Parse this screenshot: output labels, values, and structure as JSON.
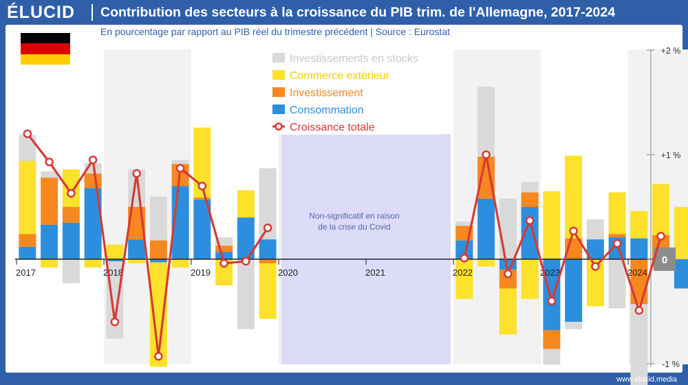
{
  "header": {
    "logo": "ÉLUCID",
    "title": "Contribution des secteurs à la croissance du PIB trim. de l'Allemagne, 2017-2024",
    "subtitle": "En pourcentage par rapport au PIB réel du trimestre précédent  |  Source : Eurostat"
  },
  "footer": {
    "url": "www.elucid.media"
  },
  "colors": {
    "stocks": "#d9d9d9",
    "exterieur": "#fde12a",
    "investissement": "#f7871f",
    "consommation": "#2e8ede",
    "croissance": "#d63a35",
    "covid": "#dcdcf8",
    "alt_band": "#f2f2f2",
    "flag_black": "#000000",
    "flag_red": "#dd0000",
    "flag_gold": "#ffce00"
  },
  "flag_icon": "germany-flag",
  "chart_data": {
    "type": "bar",
    "stacked": true,
    "ylim": [
      -1,
      2
    ],
    "yticks": [
      {
        "value": 2,
        "label": "+2 %"
      },
      {
        "value": 1,
        "label": "+1 %"
      },
      {
        "value": 0,
        "label": "0"
      },
      {
        "value": -1,
        "label": "-1 %"
      }
    ],
    "year_labels": [
      "2017",
      "2018",
      "2019",
      "2020",
      "2021",
      "2022",
      "2023",
      "2024"
    ],
    "legend_position": "top-center",
    "covid_note": [
      "Non-significatif en raison",
      "de la crise du Covid"
    ],
    "covid_range": [
      "2020Q1",
      "2021Q4"
    ],
    "categories": [
      "2017Q1",
      "2017Q2",
      "2017Q3",
      "2017Q4",
      "2018Q1",
      "2018Q2",
      "2018Q3",
      "2018Q4",
      "2019Q1",
      "2019Q2",
      "2019Q3",
      "2019Q4",
      "2020Q1",
      "2020Q2",
      "2020Q3",
      "2020Q4",
      "2021Q1",
      "2021Q2",
      "2021Q3",
      "2021Q4",
      "2022Q1",
      "2022Q2",
      "2022Q3",
      "2022Q4",
      "2023Q1",
      "2023Q2",
      "2023Q3",
      "2023Q4",
      "2024Q1",
      "2024Q2",
      "2024Q3"
    ],
    "series": [
      {
        "name": "Consommation",
        "key": "consommation",
        "values": [
          0.12,
          0.33,
          0.35,
          0.68,
          -0.02,
          0.19,
          -0.03,
          0.7,
          0.57,
          0.07,
          0.4,
          0.19,
          null,
          null,
          null,
          null,
          null,
          null,
          null,
          null,
          0.18,
          0.58,
          -0.1,
          0.5,
          -0.68,
          -0.6,
          0.19,
          0.21,
          0.2,
          -0.05,
          -0.28
        ]
      },
      {
        "name": "Investissement",
        "key": "investissement",
        "values": [
          0.12,
          0.45,
          0.15,
          0.14,
          0.0,
          0.31,
          0.18,
          0.21,
          0.02,
          0.06,
          0.0,
          -0.04,
          null,
          null,
          null,
          null,
          null,
          null,
          null,
          null,
          0.14,
          0.4,
          -0.18,
          0.14,
          -0.18,
          0.2,
          0.0,
          0.03,
          -0.43,
          0.23,
          0.0
        ]
      },
      {
        "name": "Commerce extérieur",
        "key": "exterieur",
        "values": [
          0.7,
          -0.08,
          0.36,
          -0.08,
          0.14,
          -0.04,
          -1.0,
          -0.08,
          0.67,
          -0.25,
          0.26,
          -0.53,
          null,
          null,
          null,
          null,
          null,
          null,
          null,
          null,
          -0.38,
          -0.07,
          -0.44,
          -0.38,
          0.65,
          0.79,
          -0.45,
          0.4,
          0.26,
          0.49,
          0.5
        ]
      },
      {
        "name": "Investissements en stocks",
        "key": "stocks",
        "values": [
          0.25,
          0.06,
          -0.23,
          0.1,
          -0.74,
          0.36,
          0.42,
          0.04,
          0.0,
          0.08,
          -0.67,
          0.68,
          null,
          null,
          null,
          null,
          null,
          null,
          null,
          null,
          0.04,
          0.67,
          0.58,
          0.1,
          -0.15,
          -0.07,
          0.19,
          -0.47,
          -0.86,
          0.0,
          0.0
        ]
      },
      {
        "name": "Croissance totale",
        "key": "croissance",
        "type": "line",
        "values": [
          1.2,
          0.93,
          0.63,
          0.95,
          -0.6,
          0.82,
          -0.93,
          0.87,
          0.7,
          -0.04,
          -0.02,
          0.3,
          null,
          null,
          null,
          null,
          null,
          null,
          null,
          null,
          0.01,
          1.0,
          -0.14,
          0.37,
          -0.4,
          0.27,
          -0.07,
          0.15,
          -0.49,
          0.22,
          null
        ]
      }
    ]
  }
}
